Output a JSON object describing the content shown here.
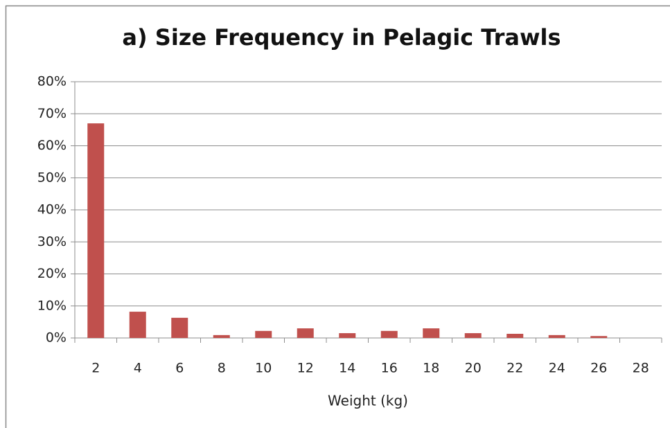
{
  "chart_data": {
    "type": "bar",
    "title": "a) Size Frequency in Pelagic Trawls",
    "x_label": "Weight (kg)",
    "categories": [
      "2",
      "4",
      "6",
      "8",
      "10",
      "12",
      "14",
      "16",
      "18",
      "20",
      "22",
      "24",
      "26",
      "28"
    ],
    "values": [
      67.0,
      8.2,
      6.3,
      0.9,
      2.2,
      3.0,
      1.5,
      2.2,
      3.0,
      1.5,
      1.3,
      0.9,
      0.6,
      0
    ],
    "color": "#c0504d",
    "ylim": [
      0,
      80
    ],
    "yticks": [
      {
        "value": 0,
        "label": "0%"
      },
      {
        "value": 10,
        "label": "10%"
      },
      {
        "value": 20,
        "label": "20%"
      },
      {
        "value": 30,
        "label": "30%"
      },
      {
        "value": 40,
        "label": "40%"
      },
      {
        "value": 50,
        "label": "50%"
      },
      {
        "value": 60,
        "label": "60%"
      },
      {
        "value": 70,
        "label": "70%"
      },
      {
        "value": 80,
        "label": "80%"
      }
    ],
    "grid": true
  }
}
